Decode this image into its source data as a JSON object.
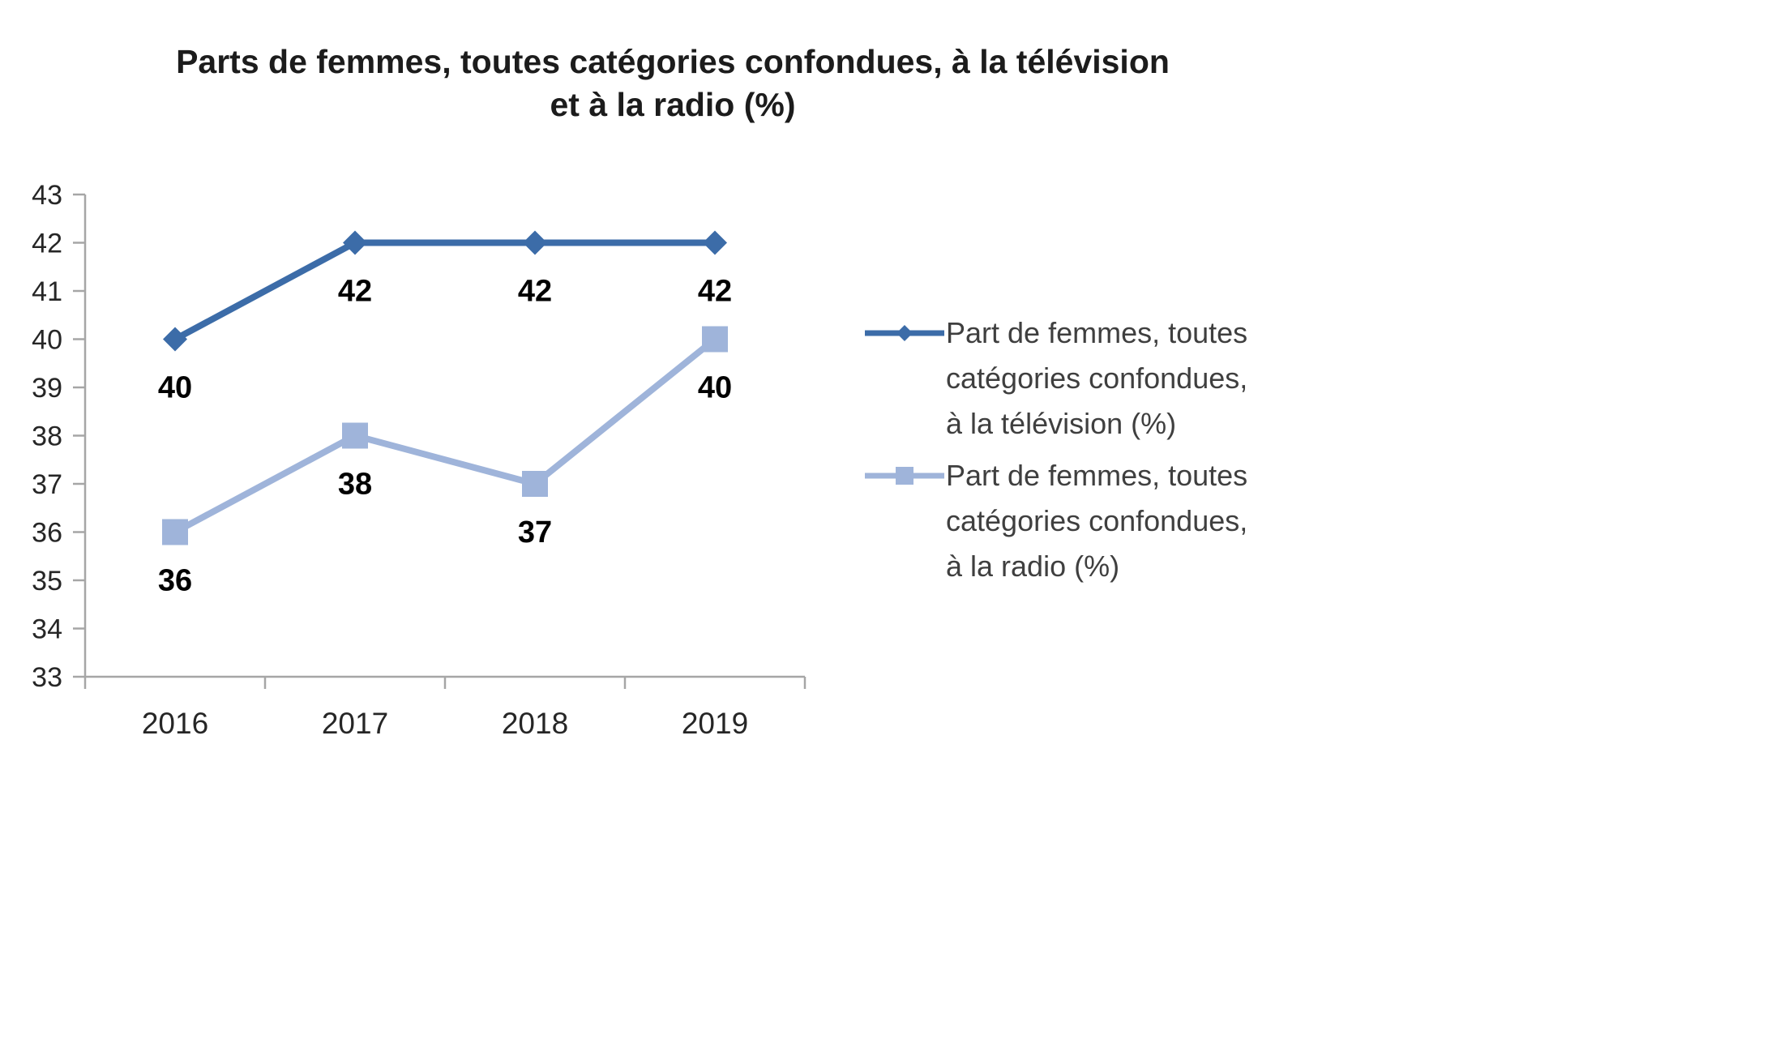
{
  "title_lines": [
    "Parts de femmes, toutes catégories confondues, à la télévision",
    "et à la radio (%)"
  ],
  "chart_data": {
    "type": "line",
    "title": "Parts de femmes, toutes catégories confondues, à la télévision et à la radio (%)",
    "categories": [
      "2016",
      "2017",
      "2018",
      "2019"
    ],
    "series": [
      {
        "name": "Part de femmes, toutes catégories confondues, à la télévision (%)",
        "values": [
          40,
          42,
          42,
          42
        ],
        "color": "#3C6CA8",
        "marker": "diamond"
      },
      {
        "name": "Part de femmes, toutes catégories confondues, à la radio (%)",
        "values": [
          36,
          38,
          37,
          40
        ],
        "color": "#9FB4DA",
        "marker": "square"
      }
    ],
    "ylim": [
      33,
      43
    ],
    "ytick_step": 1,
    "xlabel": "",
    "ylabel": "",
    "grid": false,
    "legend_position": "right",
    "data_labels": true
  },
  "colors": {
    "axis": "#A6A6A6",
    "tick_text": "#262626",
    "data_label": "#000000",
    "title_text": "#1C1C1C",
    "legend_text": "#3F3F3F"
  }
}
